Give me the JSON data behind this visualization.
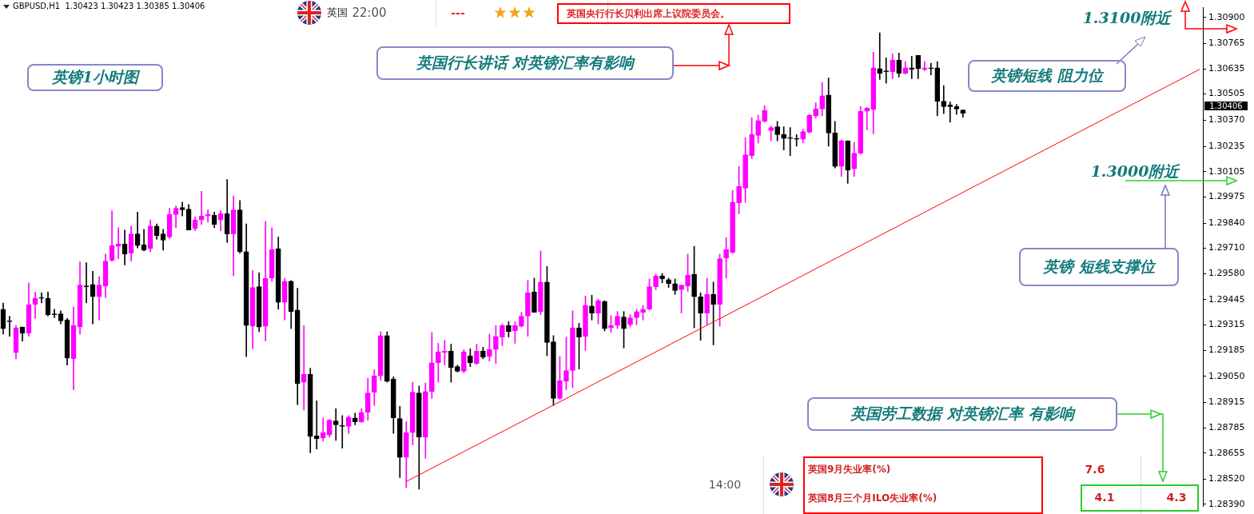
{
  "chart_data": {
    "type": "candlestick",
    "title": "GBPUSD,H1  1.30423 1.30423 1.30385 1.30406",
    "annotations": [
      "22:00",
      "英国",
      "---",
      "英国央行行长贝利出席上议院委员会。",
      "英国行长讲话 对英镑汇率有影响",
      "英镑1小时图",
      "1.3100附近",
      "英镑短线 阻力位",
      "1.3000附近",
      "英镑 短线支撑位",
      "英国劳工数据 对英镑汇率 有影响",
      "14:00",
      "英国9月失业率(%)",
      "7.6",
      "英国8月三个月ILO失业率(%)",
      "4.1",
      "4.3",
      "1.30406"
    ],
    "categories": [
      null,
      null,
      null,
      null,
      null,
      null,
      null,
      null,
      null,
      null,
      null,
      null,
      null,
      null,
      null,
      null,
      null,
      null,
      null,
      null,
      null,
      null,
      null,
      null,
      null,
      null,
      null,
      null,
      null,
      null,
      null,
      null,
      null,
      null,
      null,
      null,
      null,
      null,
      null,
      null,
      null,
      null,
      null,
      null,
      null,
      null,
      null,
      null,
      null,
      null,
      null,
      null,
      null,
      null,
      null,
      null,
      null,
      null,
      null,
      null,
      null,
      null,
      null,
      null,
      null,
      null,
      null,
      null,
      null,
      null,
      null,
      null,
      null,
      null,
      null,
      null,
      null,
      null,
      null,
      null,
      null,
      null,
      null,
      null,
      null,
      null,
      null,
      null,
      null,
      null,
      null,
      null,
      null,
      null,
      null,
      null,
      null,
      null,
      null,
      null,
      null,
      null,
      null,
      null,
      null,
      null,
      null,
      null,
      null,
      null,
      null,
      null,
      null,
      null,
      null,
      null,
      null,
      null,
      null,
      null,
      null,
      null,
      null,
      null,
      null,
      null,
      null,
      null,
      null,
      null,
      null,
      null,
      null,
      null,
      null,
      null,
      null,
      null,
      null,
      null,
      null,
      null,
      null,
      null,
      null,
      null,
      null,
      null,
      null,
      null,
      null,
      null,
      null,
      null,
      null,
      null,
      null,
      null,
      null,
      null,
      null,
      null,
      null,
      null,
      null,
      null,
      null,
      null,
      null,
      null,
      null,
      null,
      null,
      null,
      null,
      null,
      null,
      null,
      null,
      null,
      null,
      null,
      null,
      null,
      null,
      null,
      null,
      null
    ],
    "ohlc": [
      [
        1.29396,
        1.29428,
        1.29268,
        1.29296
      ],
      [
        1.29332,
        1.2936,
        1.29256,
        1.29332
      ],
      [
        1.29172,
        1.29312,
        1.2914,
        1.293
      ],
      [
        1.29304,
        1.29304,
        1.29232,
        1.29272
      ],
      [
        1.29272,
        1.29532,
        1.29256,
        1.2942
      ],
      [
        1.2942,
        1.29484,
        1.29348,
        1.29452
      ],
      [
        1.29452,
        1.2948,
        1.29428,
        1.29452
      ],
      [
        1.29452,
        1.29484,
        1.2936,
        1.29368
      ],
      [
        1.29368,
        1.29396,
        1.29352,
        1.29368
      ],
      [
        1.29372,
        1.29388,
        1.2932,
        1.29336
      ],
      [
        1.2934,
        1.29348,
        1.29108,
        1.29144
      ],
      [
        1.2914,
        1.29408,
        1.2898,
        1.29312
      ],
      [
        1.29304,
        1.2964,
        1.29268,
        1.2952
      ],
      [
        1.29512,
        1.29636,
        1.29428,
        1.29512
      ],
      [
        1.29524,
        1.29592,
        1.2932,
        1.2946
      ],
      [
        1.2946,
        1.29564,
        1.2934,
        1.2952
      ],
      [
        1.29516,
        1.2968,
        1.29456,
        1.29644
      ],
      [
        1.29648,
        1.29904,
        1.29644,
        1.29724
      ],
      [
        1.2972,
        1.29816,
        1.29656,
        1.29732
      ],
      [
        1.29732,
        1.29804,
        1.29624,
        1.2968
      ],
      [
        1.29684,
        1.29824,
        1.29644,
        1.29784
      ],
      [
        1.29784,
        1.29896,
        1.29712,
        1.29724
      ],
      [
        1.29728,
        1.29808,
        1.29696,
        1.297
      ],
      [
        1.29708,
        1.29856,
        1.29692,
        1.29824
      ],
      [
        1.29824,
        1.29836,
        1.29756,
        1.29776
      ],
      [
        1.29784,
        1.29808,
        1.297,
        1.29752
      ],
      [
        1.29768,
        1.29916,
        1.2976,
        1.29884
      ],
      [
        1.29884,
        1.29928,
        1.29816,
        1.29916
      ],
      [
        1.2992,
        1.29948,
        1.29876,
        1.29908
      ],
      [
        1.29912,
        1.29936,
        1.29804,
        1.29804
      ],
      [
        1.29812,
        1.29872,
        1.298,
        1.29856
      ],
      [
        1.29856,
        1.30004,
        1.29832,
        1.29876
      ],
      [
        1.29876,
        1.29908,
        1.29844,
        1.29884
      ],
      [
        1.2988,
        1.29896,
        1.29816,
        1.29832
      ],
      [
        1.29856,
        1.29904,
        1.298,
        1.29888
      ],
      [
        1.29888,
        1.30064,
        1.2974,
        1.29784
      ],
      [
        1.29784,
        1.2998,
        1.29568,
        1.29908
      ],
      [
        1.29908,
        1.29956,
        1.29684,
        1.29692
      ],
      [
        1.29692,
        1.29836,
        1.29152,
        1.29312
      ],
      [
        1.29308,
        1.29596,
        1.29192,
        1.29508
      ],
      [
        1.29512,
        1.29584,
        1.2928,
        1.29304
      ],
      [
        1.29308,
        1.29848,
        1.29232,
        1.29556
      ],
      [
        1.29556,
        1.29816,
        1.2954,
        1.29704
      ],
      [
        1.29708,
        1.29768,
        1.29396,
        1.29432
      ],
      [
        1.29432,
        1.29556,
        1.2934,
        1.2954
      ],
      [
        1.2954,
        1.29544,
        1.29296,
        1.29384
      ],
      [
        1.29392,
        1.29504,
        1.28904,
        1.29012
      ],
      [
        1.2902,
        1.29312,
        1.28876,
        1.2906
      ],
      [
        1.2906,
        1.29092,
        1.28656,
        1.2874
      ],
      [
        1.28744,
        1.28924,
        1.28676,
        1.28728
      ],
      [
        1.28732,
        1.28836,
        1.28716,
        1.2876
      ],
      [
        1.28748,
        1.28828,
        1.28736,
        1.28824
      ],
      [
        1.2882,
        1.28884,
        1.2872,
        1.288
      ],
      [
        1.28792,
        1.28848,
        1.2868,
        1.28792
      ],
      [
        1.28792,
        1.28848,
        1.28756,
        1.2884
      ],
      [
        1.28836,
        1.2886,
        1.288,
        1.28816
      ],
      [
        1.28816,
        1.28884,
        1.28812,
        1.28864
      ],
      [
        1.28864,
        1.2904,
        1.28824,
        1.28964
      ],
      [
        1.28968,
        1.29084,
        1.289,
        1.29052
      ],
      [
        1.29052,
        1.2928,
        1.29028,
        1.2926
      ],
      [
        1.2926,
        1.2928,
        1.2902,
        1.29024
      ],
      [
        1.29036,
        1.29048,
        1.28756,
        1.28836
      ],
      [
        1.28832,
        1.28896,
        1.28528,
        1.28632
      ],
      [
        1.28632,
        1.28816,
        1.28476,
        1.2876
      ],
      [
        1.2876,
        1.2902,
        1.28696,
        1.28968
      ],
      [
        1.28964,
        1.29,
        1.28468,
        1.28736
      ],
      [
        1.28736,
        1.29016,
        1.28628,
        1.28972
      ],
      [
        1.28972,
        1.29276,
        1.28936,
        1.2912
      ],
      [
        1.2912,
        1.2922,
        1.2902,
        1.29176
      ],
      [
        1.29172,
        1.29236,
        1.29108,
        1.2918
      ],
      [
        1.2918,
        1.29216,
        1.2902,
        1.29096
      ],
      [
        1.291,
        1.29108,
        1.29072,
        1.29076
      ],
      [
        1.29076,
        1.29188,
        1.29068,
        1.29176
      ],
      [
        1.29156,
        1.29192,
        1.291,
        1.2912
      ],
      [
        1.29116,
        1.29216,
        1.29112,
        1.2918
      ],
      [
        1.2918,
        1.292,
        1.2914,
        1.29148
      ],
      [
        1.29152,
        1.29268,
        1.29128,
        1.29188
      ],
      [
        1.29188,
        1.29312,
        1.29116,
        1.29256
      ],
      [
        1.29252,
        1.2932,
        1.29208,
        1.29312
      ],
      [
        1.29312,
        1.29332,
        1.29252,
        1.2928
      ],
      [
        1.29284,
        1.29332,
        1.2922,
        1.29312
      ],
      [
        1.29308,
        1.2938,
        1.29304,
        1.2936
      ],
      [
        1.2936,
        1.29544,
        1.29256,
        1.2948
      ],
      [
        1.29484,
        1.29556,
        1.2938,
        1.2938
      ],
      [
        1.29384,
        1.29696,
        1.29368,
        1.29536
      ],
      [
        1.29536,
        1.29616,
        1.29156,
        1.29224
      ],
      [
        1.29228,
        1.2926,
        1.289,
        1.28936
      ],
      [
        1.28936,
        1.29152,
        1.28932,
        1.29028
      ],
      [
        1.29024,
        1.29252,
        1.2898,
        1.2908
      ],
      [
        1.2908,
        1.29388,
        1.28992,
        1.293
      ],
      [
        1.293,
        1.29324,
        1.29088,
        1.29252
      ],
      [
        1.29256,
        1.29464,
        1.29184,
        1.29416
      ],
      [
        1.29412,
        1.29468,
        1.2934,
        1.29376
      ],
      [
        1.29376,
        1.29448,
        1.2932,
        1.2944
      ],
      [
        1.29436,
        1.2944,
        1.29284,
        1.29296
      ],
      [
        1.293,
        1.29364,
        1.29276,
        1.29312
      ],
      [
        1.29312,
        1.29384,
        1.29296,
        1.2936
      ],
      [
        1.29356,
        1.29384,
        1.29196,
        1.29296
      ],
      [
        1.29316,
        1.29368,
        1.29304,
        1.29352
      ],
      [
        1.29352,
        1.29396,
        1.29316,
        1.29384
      ],
      [
        1.2938,
        1.29416,
        1.2934,
        1.29396
      ],
      [
        1.29396,
        1.29552,
        1.29392,
        1.29512
      ],
      [
        1.29512,
        1.29576,
        1.29496,
        1.29568
      ],
      [
        1.29568,
        1.2958,
        1.29532,
        1.29552
      ],
      [
        1.29548,
        1.29556,
        1.29508,
        1.29528
      ],
      [
        1.29528,
        1.29552,
        1.29472,
        1.29492
      ],
      [
        1.29496,
        1.2952,
        1.29376,
        1.2952
      ],
      [
        1.29516,
        1.2968,
        1.29488,
        1.29572
      ],
      [
        1.29576,
        1.2972,
        1.293,
        1.2946
      ],
      [
        1.2946,
        1.2948,
        1.29236,
        1.29376
      ],
      [
        1.29376,
        1.29556,
        1.29316,
        1.29472
      ],
      [
        1.29472,
        1.29536,
        1.29212,
        1.2942
      ],
      [
        1.2942,
        1.2968,
        1.29308,
        1.29656
      ],
      [
        1.2966,
        1.29764,
        1.29556,
        1.29704
      ],
      [
        1.29688,
        1.30008,
        1.29684,
        1.29948
      ],
      [
        1.29944,
        1.30132,
        1.29888,
        1.30028
      ],
      [
        1.3002,
        1.3028,
        1.29948,
        1.30192
      ],
      [
        1.30188,
        1.30384,
        1.30172,
        1.30296
      ],
      [
        1.30292,
        1.30396,
        1.30252,
        1.30368
      ],
      [
        1.30364,
        1.30444,
        1.3036,
        1.3042
      ],
      [
        1.30316,
        1.3034,
        1.30264,
        1.30332
      ],
      [
        1.30336,
        1.30364,
        1.30264,
        1.30296
      ],
      [
        1.30296,
        1.30336,
        1.30216,
        1.30276
      ],
      [
        1.30276,
        1.30332,
        1.30188,
        1.30276
      ],
      [
        1.30272,
        1.30296,
        1.30236,
        1.30272
      ],
      [
        1.30272,
        1.30324,
        1.30252,
        1.30312
      ],
      [
        1.30308,
        1.304,
        1.30304,
        1.30396
      ],
      [
        1.30392,
        1.3046,
        1.3038,
        1.30428
      ],
      [
        1.30428,
        1.30564,
        1.30392,
        1.30496
      ],
      [
        1.305,
        1.30588,
        1.30236,
        1.30304
      ],
      [
        1.30304,
        1.30364,
        1.30124,
        1.30132
      ],
      [
        1.30132,
        1.30268,
        1.3008,
        1.30264
      ],
      [
        1.30264,
        1.30264,
        1.30044,
        1.30112
      ],
      [
        1.3012,
        1.30256,
        1.3008,
        1.302
      ],
      [
        1.302,
        1.3044,
        1.30196,
        1.30416
      ],
      [
        1.30416,
        1.30436,
        1.3032,
        1.30432
      ],
      [
        1.30424,
        1.3072,
        1.303,
        1.3064
      ],
      [
        1.30636,
        1.3082,
        1.3058,
        1.30612
      ],
      [
        1.3062,
        1.30692,
        1.3056,
        1.3062
      ],
      [
        1.3062,
        1.30712,
        1.30584,
        1.3068
      ],
      [
        1.3068,
        1.30716,
        1.30592,
        1.30612
      ],
      [
        1.30612,
        1.30672,
        1.30608,
        1.3064
      ],
      [
        1.3064,
        1.307,
        1.30584,
        1.30632
      ],
      [
        1.30704,
        1.30704,
        1.30584,
        1.30636
      ],
      [
        1.30632,
        1.30672,
        1.30624,
        1.3064
      ],
      [
        1.30636,
        1.30664,
        1.30604,
        1.30636
      ],
      [
        1.3064,
        1.30672,
        1.30392,
        1.30468
      ],
      [
        1.30468,
        1.30548,
        1.30404,
        1.3044
      ],
      [
        1.30448,
        1.30464,
        1.3036,
        1.3044
      ],
      [
        1.3044,
        1.30452,
        1.304,
        1.30428
      ],
      [
        1.30423,
        1.30423,
        1.30385,
        1.30406
      ],
      null,
      null,
      null,
      null,
      null,
      null,
      null,
      null,
      null,
      null,
      null,
      null,
      null,
      null,
      null,
      null,
      null,
      null,
      null,
      null,
      null,
      null,
      null,
      null,
      null,
      null,
      null,
      null,
      null,
      null,
      null,
      null,
      null,
      null,
      null,
      null,
      null
    ],
    "colors": [
      "#000000",
      "#000000",
      "#ff00ff",
      "#000000",
      "#ff00ff",
      "#ff00ff",
      "#000000",
      "#000000",
      "#000000",
      "#000000",
      "#000000",
      "#ff00ff",
      "#ff00ff",
      "#000000",
      "#000000",
      "#ff00ff",
      "#ff00ff",
      "#ff00ff",
      "#ff00ff",
      "#000000",
      "#ff00ff",
      "#000000",
      "#000000",
      "#ff00ff",
      "#000000",
      "#000000",
      "#ff00ff",
      "#ff00ff",
      "#000000",
      "#000000",
      "#ff00ff",
      "#ff00ff",
      "#ff00ff",
      "#000000",
      "#ff00ff",
      "#000000",
      "#ff00ff",
      "#000000",
      "#000000",
      "#ff00ff",
      "#000000",
      "#ff00ff",
      "#ff00ff",
      "#000000",
      "#ff00ff",
      "#000000",
      "#000000",
      "#ff00ff",
      "#000000",
      "#000000",
      "#ff00ff",
      "#ff00ff",
      "#000000",
      "#000000",
      "#ff00ff",
      "#000000",
      "#ff00ff",
      "#ff00ff",
      "#ff00ff",
      "#ff00ff",
      "#000000",
      "#000000",
      "#000000",
      "#ff00ff",
      "#ff00ff",
      "#000000",
      "#ff00ff",
      "#ff00ff",
      "#ff00ff",
      "#ff00ff",
      "#000000",
      "#000000",
      "#ff00ff",
      "#000000",
      "#ff00ff",
      "#000000",
      "#ff00ff",
      "#ff00ff",
      "#ff00ff",
      "#000000",
      "#ff00ff",
      "#ff00ff",
      "#ff00ff",
      "#000000",
      "#ff00ff",
      "#000000",
      "#000000",
      "#ff00ff",
      "#ff00ff",
      "#ff00ff",
      "#000000",
      "#ff00ff",
      "#000000",
      "#ff00ff",
      "#000000",
      "#ff00ff",
      "#ff00ff",
      "#000000",
      "#ff00ff",
      "#ff00ff",
      "#ff00ff",
      "#ff00ff",
      "#ff00ff",
      "#000000",
      "#000000",
      "#000000",
      "#ff00ff",
      "#ff00ff",
      "#000000",
      "#000000",
      "#ff00ff",
      "#000000",
      "#ff00ff",
      "#ff00ff",
      "#ff00ff",
      "#ff00ff",
      "#ff00ff",
      "#ff00ff",
      "#ff00ff",
      "#ff00ff",
      "#ff00ff",
      "#000000",
      "#000000",
      "#000000",
      "#000000",
      "#ff00ff",
      "#ff00ff",
      "#ff00ff",
      "#ff00ff",
      "#000000",
      "#000000",
      "#ff00ff",
      "#000000",
      "#ff00ff",
      "#ff00ff",
      "#ff00ff",
      "#ff00ff",
      "#000000",
      "#000000",
      "#ff00ff",
      "#000000",
      "#ff00ff",
      "#000000",
      "#000000",
      "#ff00ff",
      "#000000",
      "#000000",
      "#000000",
      "#000000",
      "#000000",
      "#000000",
      null,
      null,
      null,
      null,
      null,
      null,
      null,
      null,
      null,
      null,
      null,
      null,
      null,
      null,
      null,
      null,
      null,
      null,
      null,
      null,
      null,
      null,
      null,
      null,
      null,
      null,
      null,
      null,
      null,
      null,
      null,
      null,
      null,
      null,
      null,
      null,
      null
    ],
    "series": [
      {
        "type": "line",
        "color": "#ff0000",
        "values": [
          null,
          null,
          null,
          null,
          null,
          null,
          null,
          null,
          null,
          null,
          null,
          null,
          null,
          null,
          null,
          null,
          null,
          null,
          null,
          null,
          null,
          null,
          null,
          null,
          null,
          null,
          null,
          null,
          null,
          null,
          null,
          null,
          null,
          null,
          null,
          null,
          null,
          null,
          null,
          null,
          null,
          null,
          null,
          null,
          null,
          null,
          null,
          null,
          null,
          null,
          null,
          null,
          null,
          null,
          null,
          null,
          null,
          null,
          null,
          null,
          null,
          null,
          null,
          1.28508,
          null,
          null,
          null,
          null,
          null,
          null,
          null,
          null,
          null,
          null,
          null,
          null,
          null,
          null,
          null,
          null,
          null,
          null,
          null,
          null,
          null,
          null,
          null,
          null,
          null,
          null,
          null,
          null,
          null,
          null,
          null,
          null,
          null,
          null,
          null,
          null,
          null,
          null,
          null,
          null,
          null,
          null,
          null,
          null,
          null,
          null,
          null,
          null,
          null,
          null,
          null,
          null,
          null,
          null,
          null,
          null,
          null,
          null,
          null,
          null,
          null,
          null,
          null,
          null,
          null,
          null,
          null,
          null,
          null,
          null,
          null,
          null,
          null,
          null,
          null,
          null,
          null,
          null,
          null,
          null,
          null,
          null,
          null,
          null,
          null,
          null,
          null,
          null,
          null,
          null,
          null,
          null,
          null,
          null,
          null,
          null,
          null,
          null,
          null,
          null,
          null,
          null,
          null,
          null,
          null,
          null,
          null,
          null,
          null,
          null,
          null,
          null,
          null,
          null,
          null,
          null,
          null,
          null,
          null,
          null,
          null,
          null,
          null,
          1.30632
        ]
      }
    ],
    "ylim": [
      1.2838,
      1.3095
    ],
    "yticks": [
      {
        "value": 1.309,
        "label": "1.30900"
      },
      {
        "value": 1.30765,
        "label": "1.30765"
      },
      {
        "value": 1.30635,
        "label": "1.30635"
      },
      {
        "value": 1.30505,
        "label": "1.30505"
      },
      {
        "value": 1.3037,
        "label": "1.30370"
      },
      {
        "value": 1.30235,
        "label": "1.30235"
      },
      {
        "value": 1.30105,
        "label": "1.30105"
      },
      {
        "value": 1.29975,
        "label": "1.29975"
      },
      {
        "value": 1.2984,
        "label": "1.29840"
      },
      {
        "value": 1.2971,
        "label": "1.29710"
      },
      {
        "value": 1.2958,
        "label": "1.29580"
      },
      {
        "value": 1.29445,
        "label": "1.29445"
      },
      {
        "value": 1.29315,
        "label": "1.29315"
      },
      {
        "value": 1.29185,
        "label": "1.29185"
      },
      {
        "value": 1.2905,
        "label": "1.29050"
      },
      {
        "value": 1.28915,
        "label": "1.28915"
      },
      {
        "value": 1.28785,
        "label": "1.28785"
      },
      {
        "value": 1.28655,
        "label": "1.28655"
      },
      {
        "value": 1.2852,
        "label": "1.28520"
      },
      {
        "value": 1.2839,
        "label": "1.28390"
      }
    ],
    "tick_labels": "y"
  }
}
